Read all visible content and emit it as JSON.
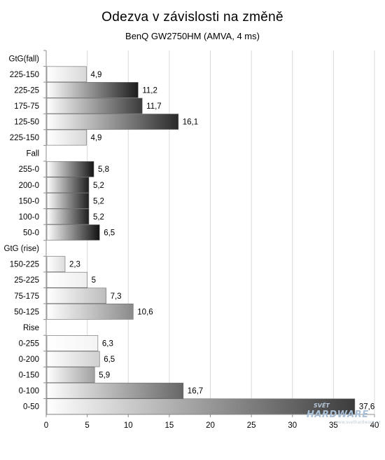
{
  "chart_data": {
    "type": "bar",
    "orientation": "horizontal",
    "title": "Odezva v závislosti na změně",
    "subtitle": "BenQ GW2750HM (AMVA, 4 ms)",
    "xlim": [
      0,
      40
    ],
    "xticks": [
      "0",
      "5",
      "10",
      "15",
      "20",
      "25",
      "30",
      "35",
      "40"
    ],
    "grid": "vertical",
    "categories": [
      {
        "label": "GtG(fall)",
        "value": null,
        "display": "",
        "shade": ""
      },
      {
        "label": "225-150",
        "value": 4.9,
        "display": "4,9",
        "shade": "#d8d8d8"
      },
      {
        "label": "225-25",
        "value": 11.2,
        "display": "11,2",
        "shade": "#1c1c1c"
      },
      {
        "label": "175-75",
        "value": 11.7,
        "display": "11,7",
        "shade": "#3a3a3a"
      },
      {
        "label": "125-50",
        "value": 16.1,
        "display": "16,1",
        "shade": "#2a2a2a"
      },
      {
        "label": "225-150",
        "value": 4.9,
        "display": "4,9",
        "shade": "#d8d8d8"
      },
      {
        "label": "Fall",
        "value": null,
        "display": "",
        "shade": ""
      },
      {
        "label": "255-0",
        "value": 5.8,
        "display": "5,8",
        "shade": "#151515"
      },
      {
        "label": "200-0",
        "value": 5.2,
        "display": "5,2",
        "shade": "#1e1e1e"
      },
      {
        "label": "150-0",
        "value": 5.2,
        "display": "5,2",
        "shade": "#1e1e1e"
      },
      {
        "label": "100-0",
        "value": 5.2,
        "display": "5,2",
        "shade": "#1e1e1e"
      },
      {
        "label": "50-0",
        "value": 6.5,
        "display": "6,5",
        "shade": "#111111"
      },
      {
        "label": "GtG (rise)",
        "value": null,
        "display": "",
        "shade": ""
      },
      {
        "label": "150-225",
        "value": 2.3,
        "display": "2,3",
        "shade": "#dcdcdc"
      },
      {
        "label": "25-225",
        "value": 5,
        "display": "5",
        "shade": "#eeeeee"
      },
      {
        "label": "75-175",
        "value": 7.3,
        "display": "7,3",
        "shade": "#bdbdbd"
      },
      {
        "label": "50-125",
        "value": 10.6,
        "display": "10,6",
        "shade": "#8a8a8a"
      },
      {
        "label": "Rise",
        "value": null,
        "display": "",
        "shade": ""
      },
      {
        "label": "0-255",
        "value": 6.3,
        "display": "6,3",
        "shade": "#f4f4f4"
      },
      {
        "label": "0-200",
        "value": 6.5,
        "display": "6,5",
        "shade": "#d0d0d0"
      },
      {
        "label": "0-150",
        "value": 5.9,
        "display": "5,9",
        "shade": "#a0a0a0"
      },
      {
        "label": "0-100",
        "value": 16.7,
        "display": "16,7",
        "shade": "#666666"
      },
      {
        "label": "0-50",
        "value": 37.6,
        "display": "37,6",
        "shade": "#3c3c3c"
      }
    ]
  },
  "watermark": {
    "top": "SVĚT",
    "main": "HARDWARE",
    "sub": "www.svethardware.cz"
  }
}
